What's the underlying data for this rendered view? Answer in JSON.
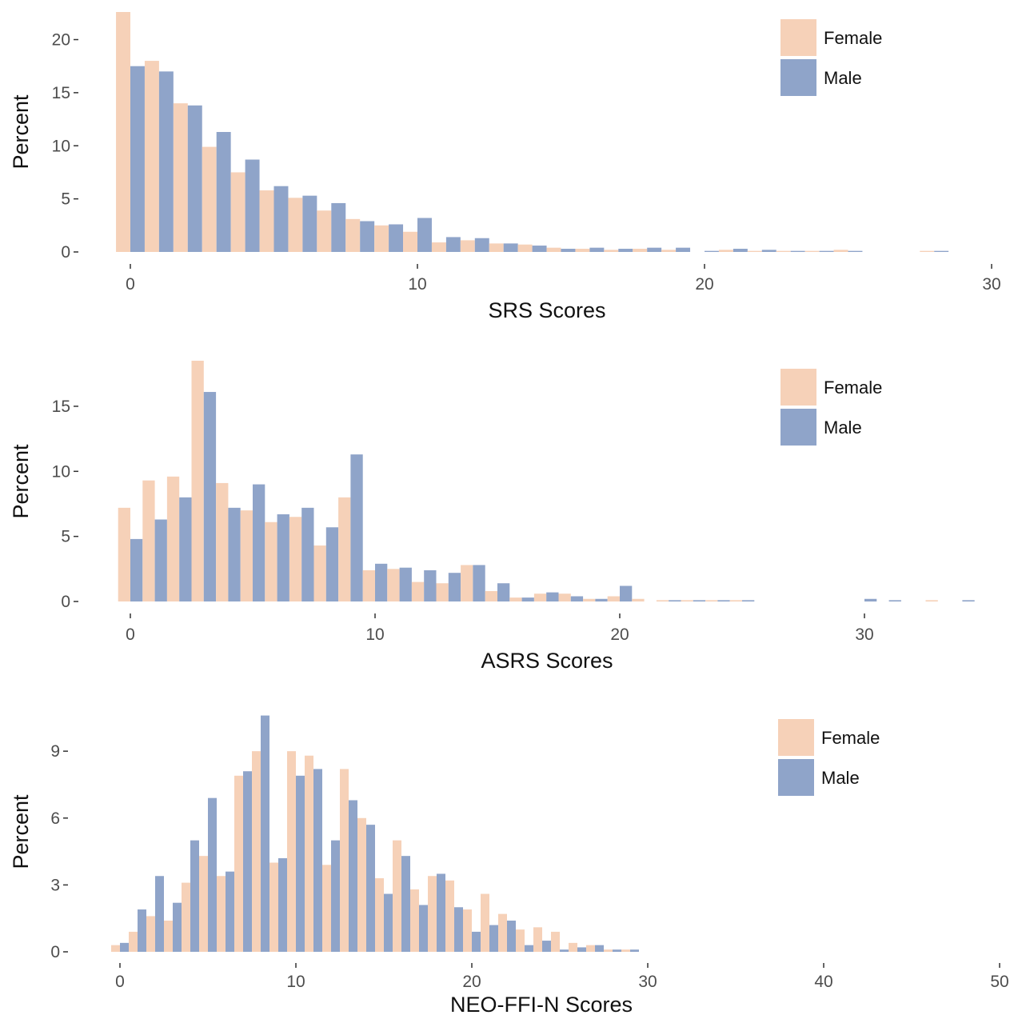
{
  "colors": {
    "female": "#f6d1b8",
    "male": "#8fa4c9"
  },
  "chart_data": [
    {
      "type": "bar",
      "xlabel": "SRS Scores",
      "ylabel": "Percent",
      "xlim": [
        -0.5,
        30
      ],
      "ylim": [
        0,
        22.6
      ],
      "xticks": [
        0,
        10,
        20,
        30
      ],
      "yticks": [
        0,
        5,
        10,
        15,
        20
      ],
      "legend_position": "top-right",
      "legend": [
        "Female",
        "Male"
      ],
      "x": [
        0,
        1,
        2,
        3,
        4,
        5,
        6,
        7,
        8,
        9,
        10,
        11,
        12,
        13,
        14,
        15,
        16,
        17,
        18,
        19,
        20,
        21,
        22,
        23,
        24,
        25,
        26,
        27,
        28,
        29
      ],
      "series": [
        {
          "name": "Female",
          "values": [
            22.6,
            18.0,
            14.0,
            9.9,
            7.5,
            5.8,
            5.1,
            3.9,
            3.1,
            2.5,
            1.9,
            0.9,
            1.1,
            0.8,
            0.7,
            0.4,
            0.3,
            0.2,
            0.3,
            0.2,
            0.0,
            0.2,
            0.1,
            0.1,
            0.1,
            0.2,
            0.0,
            0.0,
            0.1,
            0.0
          ]
        },
        {
          "name": "Male",
          "values": [
            17.5,
            17.0,
            13.8,
            11.3,
            8.7,
            6.2,
            5.3,
            4.6,
            2.9,
            2.6,
            3.2,
            1.4,
            1.3,
            0.8,
            0.6,
            0.3,
            0.4,
            0.3,
            0.4,
            0.4,
            0.1,
            0.3,
            0.2,
            0.1,
            0.1,
            0.1,
            0.0,
            0.0,
            0.1,
            0.0
          ]
        }
      ]
    },
    {
      "type": "bar",
      "xlabel": "ASRS Scores",
      "ylabel": "Percent",
      "xlim": [
        -0.6,
        35
      ],
      "ylim": [
        0,
        18.5
      ],
      "xticks": [
        0,
        10,
        20,
        30
      ],
      "yticks": [
        0,
        5,
        10,
        15
      ],
      "legend_position": "top-right",
      "legend": [
        "Female",
        "Male"
      ],
      "x": [
        0,
        1,
        2,
        3,
        4,
        5,
        6,
        7,
        8,
        9,
        10,
        11,
        12,
        13,
        14,
        15,
        16,
        17,
        18,
        19,
        20,
        21,
        22,
        23,
        24,
        25,
        26,
        27,
        28,
        29,
        30,
        31,
        32,
        33,
        34
      ],
      "series": [
        {
          "name": "Female",
          "values": [
            7.2,
            9.3,
            9.6,
            18.5,
            9.1,
            7.0,
            6.1,
            6.5,
            4.3,
            8.0,
            2.4,
            2.5,
            1.5,
            1.4,
            2.8,
            0.8,
            0.3,
            0.6,
            0.6,
            0.2,
            0.4,
            0.2,
            0.1,
            0.1,
            0.1,
            0.1,
            0.0,
            0.0,
            0.0,
            0.0,
            0.0,
            0.0,
            0.0,
            0.1,
            0.0
          ]
        },
        {
          "name": "Male",
          "values": [
            4.8,
            6.3,
            8.0,
            16.1,
            7.2,
            9.0,
            6.7,
            7.2,
            5.7,
            11.3,
            2.9,
            2.6,
            2.4,
            2.2,
            2.8,
            1.4,
            0.3,
            0.7,
            0.4,
            0.2,
            1.2,
            0.0,
            0.1,
            0.1,
            0.1,
            0.1,
            0.0,
            0.0,
            0.0,
            0.0,
            0.2,
            0.1,
            0.0,
            0.0,
            0.1
          ]
        }
      ]
    },
    {
      "type": "bar",
      "xlabel": "NEO-FFI-N Scores",
      "ylabel": "Percent",
      "xlim": [
        -0.8,
        49
      ],
      "ylim": [
        0,
        10.8
      ],
      "xticks": [
        0,
        10,
        20,
        30,
        40,
        50
      ],
      "yticks": [
        0,
        3,
        6,
        9
      ],
      "legend_position": "top-right",
      "legend": [
        "Female",
        "Male"
      ],
      "x": [
        0,
        1,
        2,
        3,
        4,
        5,
        6,
        7,
        8,
        9,
        10,
        11,
        12,
        13,
        14,
        15,
        16,
        17,
        18,
        19,
        20,
        21,
        22,
        23,
        24,
        25,
        26,
        27,
        28,
        29,
        30,
        31,
        32,
        33,
        34,
        35,
        36,
        37,
        38,
        39,
        40,
        41,
        42,
        43,
        44,
        45,
        46,
        47,
        48
      ],
      "series": [
        {
          "name": "Female",
          "values": [
            0.3,
            0.9,
            1.6,
            1.4,
            3.1,
            4.3,
            3.4,
            7.9,
            9.0,
            4.0,
            9.0,
            8.8,
            3.9,
            8.2,
            6.0,
            3.3,
            5.0,
            2.8,
            3.4,
            3.2,
            1.9,
            2.6,
            1.7,
            1.0,
            1.1,
            0.9,
            0.4,
            0.3,
            0.1,
            0.1,
            0.0,
            0.0,
            0.0,
            0.0,
            0.0,
            0.0,
            0.0,
            0.0,
            0.0,
            0.0,
            0.0,
            0.0,
            0.0,
            0.0,
            0.0,
            0.0,
            0.0,
            0.0,
            0.0
          ]
        },
        {
          "name": "Male",
          "values": [
            0.4,
            1.9,
            3.4,
            2.2,
            5.0,
            6.9,
            3.6,
            8.1,
            10.6,
            4.2,
            7.9,
            8.2,
            5.0,
            6.8,
            5.7,
            2.6,
            4.3,
            2.1,
            3.5,
            2.0,
            0.9,
            1.2,
            1.4,
            0.3,
            0.5,
            0.1,
            0.2,
            0.3,
            0.1,
            0.1,
            0.0,
            0.0,
            0.0,
            0.0,
            0.0,
            0.0,
            0.0,
            0.0,
            0.0,
            0.0,
            0.0,
            0.0,
            0.0,
            0.0,
            0.0,
            0.0,
            0.0,
            0.0,
            0.0
          ]
        }
      ]
    }
  ]
}
